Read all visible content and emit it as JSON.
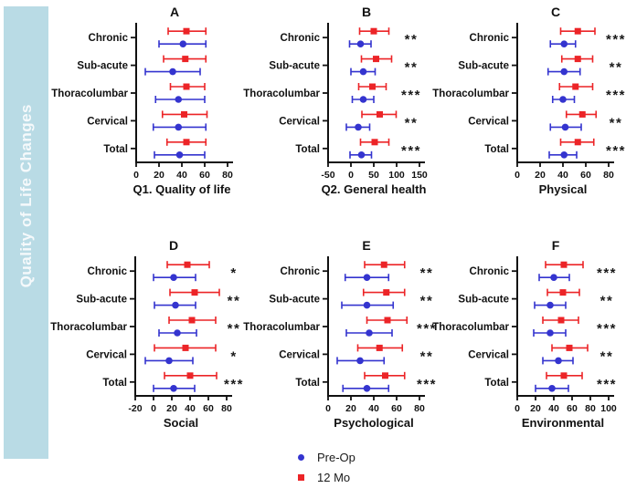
{
  "sidebar": {
    "label": "Quality of Life Changes",
    "bg": "#b9dbe5",
    "text_color": "#f5f9fb"
  },
  "legend": {
    "items": [
      {
        "label": "Pre-Op",
        "marker": "circle",
        "color": "#3434cf"
      },
      {
        "label": "12 Mo",
        "marker": "square",
        "color": "#ec2427"
      }
    ]
  },
  "colors": {
    "pre_op": "#3434cf",
    "twelve_mo": "#ec2427",
    "axis": "#111111",
    "significance": "#1a1a1a"
  },
  "chart_data": [
    {
      "type": "scatter",
      "panel": "A",
      "xlabel": "Q1. Quality of life",
      "xlim": [
        0,
        80
      ],
      "xticks": [
        0,
        20,
        40,
        60,
        80
      ],
      "grid": false,
      "categories": [
        "Chronic",
        "Sub-acute",
        "Thoracolumbar",
        "Cervical",
        "Total"
      ],
      "series": [
        {
          "name": "12 Mo",
          "marker": "square",
          "color": "#ec2427",
          "values": [
            44,
            43,
            44,
            42,
            44
          ],
          "ci_low": [
            28,
            24,
            30,
            23,
            27
          ],
          "ci_high": [
            61,
            61,
            60,
            62,
            61
          ]
        },
        {
          "name": "Pre-Op",
          "marker": "circle",
          "color": "#3434cf",
          "values": [
            41,
            32,
            37,
            37,
            38
          ],
          "ci_low": [
            20,
            8,
            17,
            15,
            16
          ],
          "ci_high": [
            61,
            56,
            60,
            61,
            60
          ]
        }
      ],
      "significance": [
        "",
        "",
        "",
        "",
        ""
      ]
    },
    {
      "type": "scatter",
      "panel": "B",
      "xlabel": "Q2. General health",
      "xlim": [
        -50,
        150
      ],
      "xticks": [
        -50,
        0,
        50,
        100,
        150
      ],
      "grid": false,
      "categories": [
        "Chronic",
        "Sub-acute",
        "Thoracolumbar",
        "Cervical",
        "Total"
      ],
      "series": [
        {
          "name": "12 Mo",
          "marker": "square",
          "color": "#ec2427",
          "values": [
            50,
            55,
            47,
            63,
            52
          ],
          "ci_low": [
            19,
            23,
            17,
            24,
            21
          ],
          "ci_high": [
            83,
            89,
            77,
            99,
            83
          ]
        },
        {
          "name": "Pre-Op",
          "marker": "circle",
          "color": "#3434cf",
          "values": [
            21,
            27,
            27,
            16,
            23
          ],
          "ci_low": [
            -3,
            0,
            3,
            -10,
            -2
          ],
          "ci_high": [
            44,
            53,
            50,
            41,
            45
          ]
        }
      ],
      "significance": [
        "**",
        "**",
        "***",
        "**",
        "***"
      ]
    },
    {
      "type": "scatter",
      "panel": "C",
      "xlabel": "Physical",
      "xlim": [
        0,
        80
      ],
      "xticks": [
        0,
        20,
        40,
        60,
        80
      ],
      "grid": false,
      "categories": [
        "Chronic",
        "Sub-acute",
        "Thoracolumbar",
        "Cervical",
        "Total"
      ],
      "series": [
        {
          "name": "12 Mo",
          "marker": "square",
          "color": "#ec2427",
          "values": [
            53,
            53,
            51,
            57,
            53
          ],
          "ci_low": [
            38,
            39,
            37,
            43,
            38
          ],
          "ci_high": [
            68,
            66,
            66,
            69,
            67
          ]
        },
        {
          "name": "Pre-Op",
          "marker": "circle",
          "color": "#3434cf",
          "values": [
            41,
            41,
            40,
            42,
            41
          ],
          "ci_low": [
            29,
            27,
            31,
            29,
            28
          ],
          "ci_high": [
            51,
            55,
            50,
            56,
            52
          ]
        }
      ],
      "significance": [
        "***",
        "**",
        "***",
        "**",
        "***"
      ]
    },
    {
      "type": "scatter",
      "panel": "D",
      "xlabel": "Social",
      "xlim": [
        -20,
        80
      ],
      "xticks": [
        -20,
        0,
        20,
        40,
        60,
        80
      ],
      "grid": false,
      "categories": [
        "Chronic",
        "Sub-acute",
        "Thoracolumbar",
        "Cervical",
        "Total"
      ],
      "series": [
        {
          "name": "12 Mo",
          "marker": "square",
          "color": "#ec2427",
          "values": [
            37,
            45,
            42,
            35,
            40
          ],
          "ci_low": [
            15,
            18,
            17,
            1,
            12
          ],
          "ci_high": [
            61,
            72,
            68,
            68,
            69
          ]
        },
        {
          "name": "Pre-Op",
          "marker": "circle",
          "color": "#3434cf",
          "values": [
            22,
            24,
            26,
            17,
            22
          ],
          "ci_low": [
            0,
            1,
            6,
            -9,
            0
          ],
          "ci_high": [
            46,
            46,
            47,
            43,
            45
          ]
        }
      ],
      "significance": [
        "*",
        "**",
        "**",
        "*",
        "***"
      ]
    },
    {
      "type": "scatter",
      "panel": "E",
      "xlabel": "Psychological",
      "xlim": [
        0,
        80
      ],
      "xticks": [
        0,
        20,
        40,
        60,
        80
      ],
      "grid": false,
      "categories": [
        "Chronic",
        "Sub-acute",
        "Thoracolumbar",
        "Cervical",
        "Total"
      ],
      "series": [
        {
          "name": "12 Mo",
          "marker": "square",
          "color": "#ec2427",
          "values": [
            49,
            51,
            52,
            45,
            50
          ],
          "ci_low": [
            32,
            31,
            34,
            26,
            32
          ],
          "ci_high": [
            67,
            67,
            69,
            65,
            67
          ]
        },
        {
          "name": "Pre-Op",
          "marker": "circle",
          "color": "#3434cf",
          "values": [
            34,
            34,
            36,
            28,
            34
          ],
          "ci_low": [
            15,
            12,
            16,
            8,
            13
          ],
          "ci_high": [
            53,
            57,
            56,
            49,
            53
          ]
        }
      ],
      "significance": [
        "**",
        "**",
        "***",
        "**",
        "***"
      ]
    },
    {
      "type": "scatter",
      "panel": "F",
      "xlabel": "Environmental",
      "xlim": [
        0,
        100
      ],
      "xticks": [
        0,
        20,
        40,
        60,
        80,
        100
      ],
      "grid": false,
      "categories": [
        "Chronic",
        "Sub-acute",
        "Thoracolumbar",
        "Cervical",
        "Total"
      ],
      "series": [
        {
          "name": "12 Mo",
          "marker": "square",
          "color": "#ec2427",
          "values": [
            51,
            50,
            48,
            57,
            51
          ],
          "ci_low": [
            31,
            33,
            28,
            38,
            32
          ],
          "ci_high": [
            72,
            68,
            67,
            77,
            71
          ]
        },
        {
          "name": "Pre-Op",
          "marker": "circle",
          "color": "#3434cf",
          "values": [
            40,
            36,
            36,
            45,
            38
          ],
          "ci_low": [
            24,
            19,
            18,
            28,
            20
          ],
          "ci_high": [
            57,
            53,
            53,
            61,
            56
          ]
        }
      ],
      "significance": [
        "***",
        "**",
        "***",
        "**",
        "***"
      ]
    }
  ]
}
